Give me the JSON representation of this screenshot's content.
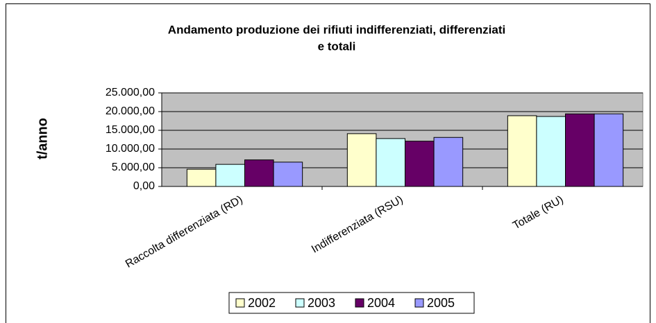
{
  "chart_data": {
    "type": "bar",
    "title": [
      "Andamento produzione dei rifiuti indifferenziati, differenziati",
      "e totali"
    ],
    "y_label": "t/anno",
    "categories": [
      "Raccolta differenziata (RD)",
      "Indifferenziata (RSU)",
      "Totale (RU)"
    ],
    "series": [
      {
        "name": "2002",
        "color": "#ffffcc",
        "values": [
          4600,
          14100,
          18900
        ]
      },
      {
        "name": "2003",
        "color": "#ccffff",
        "values": [
          5900,
          12800,
          18700
        ]
      },
      {
        "name": "2004",
        "color": "#660066",
        "values": [
          7100,
          12100,
          19400
        ]
      },
      {
        "name": "2005",
        "color": "#9999ff",
        "values": [
          6500,
          13100,
          19400
        ]
      }
    ],
    "ylim": [
      0,
      25000
    ],
    "yticks": [
      {
        "value": 0,
        "label": "0,00"
      },
      {
        "value": 5000,
        "label": "5.000,00"
      },
      {
        "value": 10000,
        "label": "10.000,00"
      },
      {
        "value": 15000,
        "label": "15.000,00"
      },
      {
        "value": 20000,
        "label": "20.000,00"
      },
      {
        "value": 25000,
        "label": "25.000,00"
      }
    ],
    "grid": true,
    "plot_background": "#c0c0c0",
    "legend": "bottom"
  }
}
